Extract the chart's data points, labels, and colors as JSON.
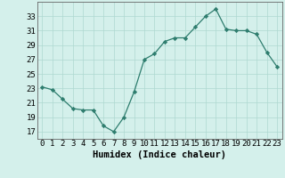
{
  "x": [
    0,
    1,
    2,
    3,
    4,
    5,
    6,
    7,
    8,
    9,
    10,
    11,
    12,
    13,
    14,
    15,
    16,
    17,
    18,
    19,
    20,
    21,
    22,
    23
  ],
  "y": [
    23.2,
    22.8,
    21.5,
    20.2,
    20.0,
    20.0,
    17.8,
    17.0,
    19.0,
    22.5,
    27.0,
    27.8,
    29.5,
    30.0,
    30.0,
    31.5,
    33.0,
    34.0,
    31.2,
    31.0,
    31.0,
    30.5,
    28.0,
    26.0
  ],
  "line_color": "#2e7d6e",
  "marker": "D",
  "marker_size": 2.2,
  "bg_color": "#d4f0eb",
  "grid_color": "#aed8d0",
  "xlabel": "Humidex (Indice chaleur)",
  "ylim": [
    16,
    35
  ],
  "xlim": [
    -0.5,
    23.5
  ],
  "yticks": [
    17,
    19,
    21,
    23,
    25,
    27,
    29,
    31,
    33
  ],
  "xtick_labels": [
    "0",
    "1",
    "2",
    "3",
    "4",
    "5",
    "6",
    "7",
    "8",
    "9",
    "10",
    "11",
    "12",
    "13",
    "14",
    "15",
    "16",
    "17",
    "18",
    "19",
    "20",
    "21",
    "22",
    "23"
  ],
  "tick_fontsize": 6.5,
  "xlabel_fontsize": 7.5
}
